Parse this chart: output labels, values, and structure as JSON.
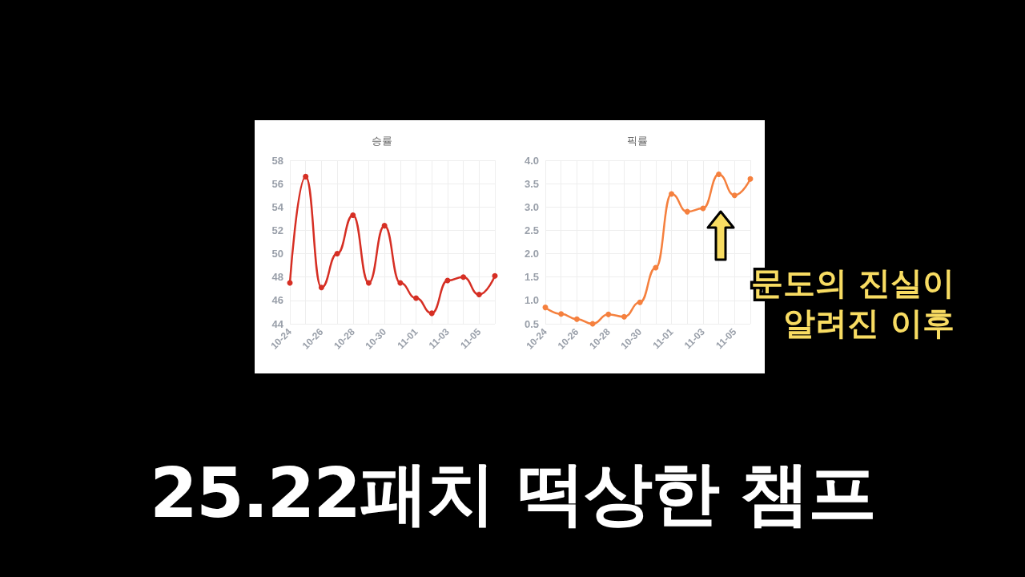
{
  "chart_data": [
    {
      "type": "line",
      "title": "승률",
      "categories": [
        "10-24",
        null,
        "10-26",
        null,
        "10-28",
        null,
        "10-30",
        null,
        "11-01",
        null,
        "11-03",
        null,
        "11-05",
        null
      ],
      "series": [
        {
          "color": "#d62f24",
          "values": [
            47.5,
            56.6,
            47.1,
            50.0,
            53.3,
            47.5,
            52.4,
            47.5,
            46.2,
            44.9,
            47.7,
            48.0,
            46.5,
            48.1
          ]
        }
      ],
      "ylim": [
        44,
        58
      ],
      "yticks": [
        44,
        46,
        48,
        50,
        52,
        54,
        56,
        58
      ],
      "grid": true,
      "marker": "circle",
      "line_style": "solid",
      "annotations": [
        "25.22패치 떡상한 챔프"
      ]
    },
    {
      "type": "line",
      "title": "픽률",
      "categories": [
        "10-24",
        null,
        "10-26",
        null,
        "10-28",
        null,
        "10-30",
        null,
        "11-01",
        null,
        "11-03",
        null,
        "11-05",
        null
      ],
      "series": [
        {
          "color": "#f5803e",
          "values": [
            0.85,
            0.71,
            0.6,
            0.5,
            0.7,
            0.65,
            0.96,
            1.7,
            3.28,
            2.9,
            2.97,
            3.7,
            3.25,
            3.6
          ]
        }
      ],
      "ylim": [
        0.5,
        4.0
      ],
      "yticks": [
        {
          "value": 0.5,
          "label": "0.5"
        },
        {
          "value": 1,
          "label": "1.0"
        },
        {
          "value": 1.5,
          "label": "1.5"
        },
        {
          "value": 2,
          "label": "2.0"
        },
        {
          "value": 2.5,
          "label": "2.5"
        },
        {
          "value": 3,
          "label": "3.0"
        },
        {
          "value": 3.5,
          "label": "3.5"
        },
        {
          "value": 4,
          "label": "4.0"
        }
      ],
      "grid": true,
      "marker": "circle",
      "line_style": "solid",
      "annotations": [
        "문도의 진실이\n알려진 이후"
      ]
    }
  ]
}
